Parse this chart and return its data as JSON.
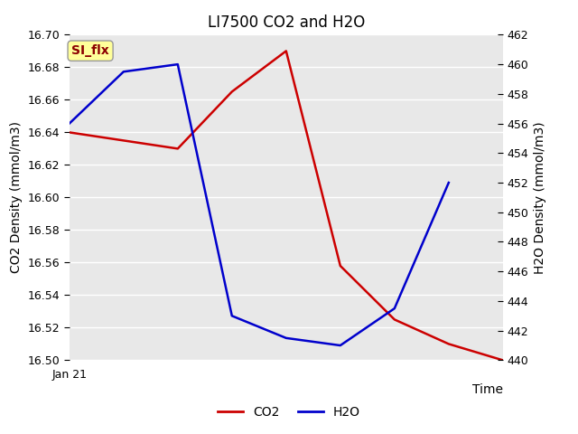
{
  "title": "LI7500 CO2 and H2O",
  "xlabel": "Time",
  "ylabel_left": "CO2 Density (mmol/m3)",
  "ylabel_right": "H2O Density (mmol/m3)",
  "annotation_text": "SI_flx",
  "annotation_color": "#8B0000",
  "annotation_bg": "#FFFF99",
  "annotation_edge": "#999999",
  "co2_x": [
    0,
    1,
    2,
    3,
    4,
    5,
    6,
    7,
    8
  ],
  "co2_y": [
    16.64,
    16.635,
    16.63,
    16.665,
    16.69,
    16.558,
    16.525,
    16.51,
    16.5
  ],
  "h2o_x": [
    0,
    1,
    2,
    3,
    4,
    5,
    6,
    7
  ],
  "h2o_y": [
    456,
    459.5,
    460,
    443,
    441.5,
    441,
    443.5,
    452
  ],
  "co2_color": "#CC0000",
  "h2o_color": "#0000CC",
  "ylim_left": [
    16.5,
    16.7
  ],
  "ylim_right": [
    440,
    462
  ],
  "yticks_left": [
    16.5,
    16.52,
    16.54,
    16.56,
    16.58,
    16.6,
    16.62,
    16.64,
    16.66,
    16.68,
    16.7
  ],
  "yticks_right": [
    440,
    442,
    444,
    446,
    448,
    450,
    452,
    454,
    456,
    458,
    460,
    462
  ],
  "xlim": [
    0,
    8
  ],
  "x_tick_pos": 0,
  "x_tick_label": "Jan 21",
  "bg_color": "#E8E8E8",
  "fig_bg_color": "#FFFFFF",
  "line_width": 1.8,
  "grid_color": "#FFFFFF",
  "grid_lw": 1.0,
  "title_fontsize": 12,
  "label_fontsize": 10,
  "tick_fontsize": 9,
  "legend_fontsize": 10
}
